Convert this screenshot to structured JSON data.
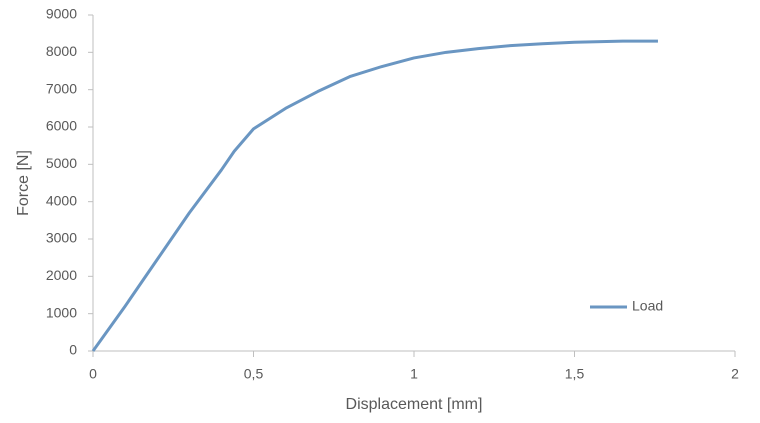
{
  "chart_data": {
    "type": "line",
    "x_label": "Displacement [mm]",
    "y_label": "Force [N]",
    "x": [
      0,
      0.1,
      0.2,
      0.3,
      0.4,
      0.44,
      0.5,
      0.6,
      0.7,
      0.8,
      0.9,
      1.0,
      1.1,
      1.2,
      1.3,
      1.4,
      1.5,
      1.6,
      1.65,
      1.76
    ],
    "series": [
      {
        "name": "Load",
        "color": "#6a96c2",
        "values": [
          0,
          1200,
          2450,
          3700,
          4850,
          5350,
          5950,
          6500,
          6950,
          7350,
          7620,
          7850,
          8000,
          8100,
          8180,
          8230,
          8270,
          8290,
          8300,
          8300
        ]
      }
    ],
    "xlim": [
      0,
      2
    ],
    "xticks": [
      0,
      {
        "value": 0.5,
        "label": "0,5"
      },
      1,
      {
        "value": 1.5,
        "label": "1,5"
      },
      2
    ],
    "ylim": [
      0,
      9000
    ],
    "yticks": [
      0,
      1000,
      2000,
      3000,
      4000,
      5000,
      6000,
      7000,
      8000,
      9000
    ],
    "grid": false,
    "legend": "right"
  }
}
